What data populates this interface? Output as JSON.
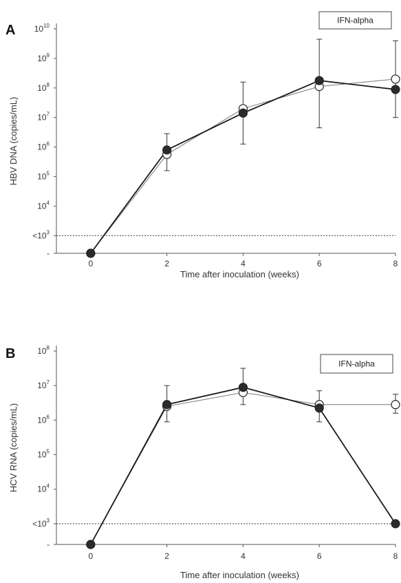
{
  "chart_data": [
    {
      "panel": "A",
      "type": "line",
      "legend_label": "IFN-alpha",
      "xlabel": "Time after inoculation (weeks)",
      "ylabel": "HBV DNA (copies/mL)",
      "x_ticks": [
        "0",
        "2",
        "4",
        "6",
        "8"
      ],
      "y_tick_labels": [
        {
          "v": 10,
          "b": "10",
          "e": "10"
        },
        {
          "v": 9,
          "b": "10",
          "e": "9"
        },
        {
          "v": 8,
          "b": "10",
          "e": "8"
        },
        {
          "v": 7,
          "b": "10",
          "e": "7"
        },
        {
          "v": 6,
          "b": "10",
          "e": "6"
        },
        {
          "v": 5,
          "b": "10",
          "e": "5"
        },
        {
          "v": 4,
          "b": "10",
          "e": "4"
        },
        {
          "v": 3,
          "b": "<10",
          "e": "3"
        },
        {
          "v": 2.4,
          "b": "-",
          "e": ""
        }
      ],
      "y_scale": "log10",
      "ylim_log10": [
        2.4,
        10
      ],
      "xlim": [
        -0.9,
        8
      ],
      "detection_limit_log10": 3,
      "series": [
        {
          "marker": "filled",
          "x": [
            0,
            2,
            4,
            6,
            8
          ],
          "y_log10": [
            2.4,
            5.9,
            7.15,
            8.25,
            7.95
          ],
          "err_high": [
            null,
            6.45,
            8.2,
            9.65,
            9.6
          ],
          "err_low": [
            null,
            5.2,
            6.1,
            6.65,
            7.0
          ]
        },
        {
          "marker": "open",
          "x": [
            0,
            2,
            4,
            6,
            8
          ],
          "y_log10": [
            2.4,
            5.75,
            7.3,
            8.05,
            8.3
          ],
          "err_high": [
            null,
            null,
            null,
            null,
            null
          ],
          "err_low": [
            null,
            null,
            null,
            null,
            null
          ]
        }
      ]
    },
    {
      "panel": "B",
      "type": "line",
      "legend_label": "IFN-alpha",
      "xlabel": "Time after inoculation (weeks)",
      "ylabel": "HCV RNA (copies/mL)",
      "x_ticks": [
        "0",
        "2",
        "4",
        "6",
        "8"
      ],
      "y_tick_labels": [
        {
          "v": 8,
          "b": "10",
          "e": "8"
        },
        {
          "v": 7,
          "b": "10",
          "e": "7"
        },
        {
          "v": 6,
          "b": "10",
          "e": "6"
        },
        {
          "v": 5,
          "b": "10",
          "e": "5"
        },
        {
          "v": 4,
          "b": "10",
          "e": "4"
        },
        {
          "v": 3,
          "b": "<10",
          "e": "3"
        },
        {
          "v": 2.4,
          "b": "-",
          "e": ""
        }
      ],
      "y_scale": "log10",
      "ylim_log10": [
        2.4,
        8
      ],
      "xlim": [
        -0.9,
        8
      ],
      "detection_limit_log10": 3,
      "series": [
        {
          "marker": "filled",
          "x": [
            0,
            2,
            4,
            6,
            8
          ],
          "y_log10": [
            2.4,
            6.45,
            6.95,
            6.35,
            3.0
          ],
          "err_high": [
            null,
            7.0,
            7.5,
            6.85,
            null
          ],
          "err_low": [
            null,
            5.95,
            6.45,
            5.95,
            null
          ]
        },
        {
          "marker": "open",
          "x": [
            0,
            2,
            4,
            6,
            8
          ],
          "y_log10": [
            2.4,
            6.4,
            6.8,
            6.45,
            6.45
          ],
          "err_high": [
            null,
            null,
            null,
            null,
            6.75
          ],
          "err_low": [
            null,
            null,
            null,
            null,
            6.2
          ]
        }
      ]
    }
  ]
}
